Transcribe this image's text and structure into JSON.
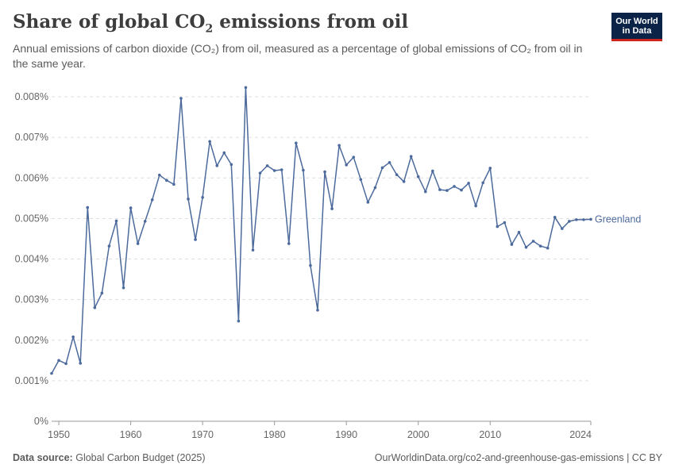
{
  "header": {
    "title_pre": "Share of global CO",
    "title_sub": "2",
    "title_post": " emissions from oil",
    "subtitle": "Annual emissions of carbon dioxide (CO₂) from oil, measured as a percentage of global emissions of CO₂ from oil in the same year."
  },
  "logo": {
    "line1": "Our World",
    "line2": "in Data",
    "bg_color": "#0a2346",
    "accent_color": "#ce261e"
  },
  "footer": {
    "source_label": "Data source:",
    "source_value": "Global Carbon Budget (2025)",
    "url": "OurWorldinData.org/co2-and-greenhouse-gas-emissions | CC BY"
  },
  "chart_data": {
    "type": "line",
    "title": "Share of global CO₂ emissions from oil",
    "xlim": [
      1949,
      2024
    ],
    "ylim": [
      0,
      0.008
    ],
    "x_ticks": [
      1950,
      1960,
      1970,
      1980,
      1990,
      2000,
      2010,
      2024
    ],
    "y_ticks": [
      {
        "value": 0,
        "label": "0%"
      },
      {
        "value": 0.001,
        "label": "0.001%"
      },
      {
        "value": 0.002,
        "label": "0.002%"
      },
      {
        "value": 0.003,
        "label": "0.003%"
      },
      {
        "value": 0.004,
        "label": "0.004%"
      },
      {
        "value": 0.005,
        "label": "0.005%"
      },
      {
        "value": 0.006,
        "label": "0.006%"
      },
      {
        "value": 0.007,
        "label": "0.007%"
      },
      {
        "value": 0.008,
        "label": "0.008%"
      }
    ],
    "grid": "horizontal-dashed",
    "series_color": "#4c6a9c",
    "series": [
      {
        "name": "Greenland",
        "x": [
          1949,
          1950,
          1951,
          1952,
          1953,
          1954,
          1955,
          1956,
          1957,
          1958,
          1959,
          1960,
          1961,
          1962,
          1963,
          1964,
          1965,
          1966,
          1967,
          1968,
          1969,
          1970,
          1971,
          1972,
          1973,
          1974,
          1975,
          1976,
          1977,
          1978,
          1979,
          1980,
          1981,
          1982,
          1983,
          1984,
          1985,
          1986,
          1987,
          1988,
          1989,
          1990,
          1991,
          1992,
          1993,
          1994,
          1995,
          1996,
          1997,
          1998,
          1999,
          2000,
          2001,
          2002,
          2003,
          2004,
          2005,
          2006,
          2007,
          2008,
          2009,
          2010,
          2011,
          2012,
          2013,
          2014,
          2015,
          2016,
          2017,
          2018,
          2019,
          2020,
          2021,
          2022,
          2023,
          2024
        ],
        "values": [
          0.00118,
          0.0015,
          0.00142,
          0.00208,
          0.00143,
          0.00527,
          0.0028,
          0.00316,
          0.00432,
          0.00494,
          0.00329,
          0.00526,
          0.00438,
          0.00493,
          0.00546,
          0.00607,
          0.00594,
          0.00584,
          0.00796,
          0.00548,
          0.00448,
          0.00552,
          0.0069,
          0.0063,
          0.00662,
          0.00633,
          0.00247,
          0.00823,
          0.00422,
          0.00612,
          0.0063,
          0.00618,
          0.0062,
          0.00438,
          0.00686,
          0.00619,
          0.00384,
          0.00274,
          0.00615,
          0.00524,
          0.0068,
          0.00632,
          0.00651,
          0.00596,
          0.0054,
          0.00576,
          0.00625,
          0.00638,
          0.00608,
          0.00591,
          0.00653,
          0.00603,
          0.00566,
          0.00617,
          0.00571,
          0.00569,
          0.00579,
          0.0057,
          0.00587,
          0.00531,
          0.00588,
          0.00624,
          0.0048,
          0.0049,
          0.00436,
          0.00466,
          0.00429,
          0.00444,
          0.00432,
          0.00427,
          0.00503,
          0.00475,
          0.00493,
          0.00497,
          0.00497,
          0.00498
        ]
      }
    ]
  }
}
